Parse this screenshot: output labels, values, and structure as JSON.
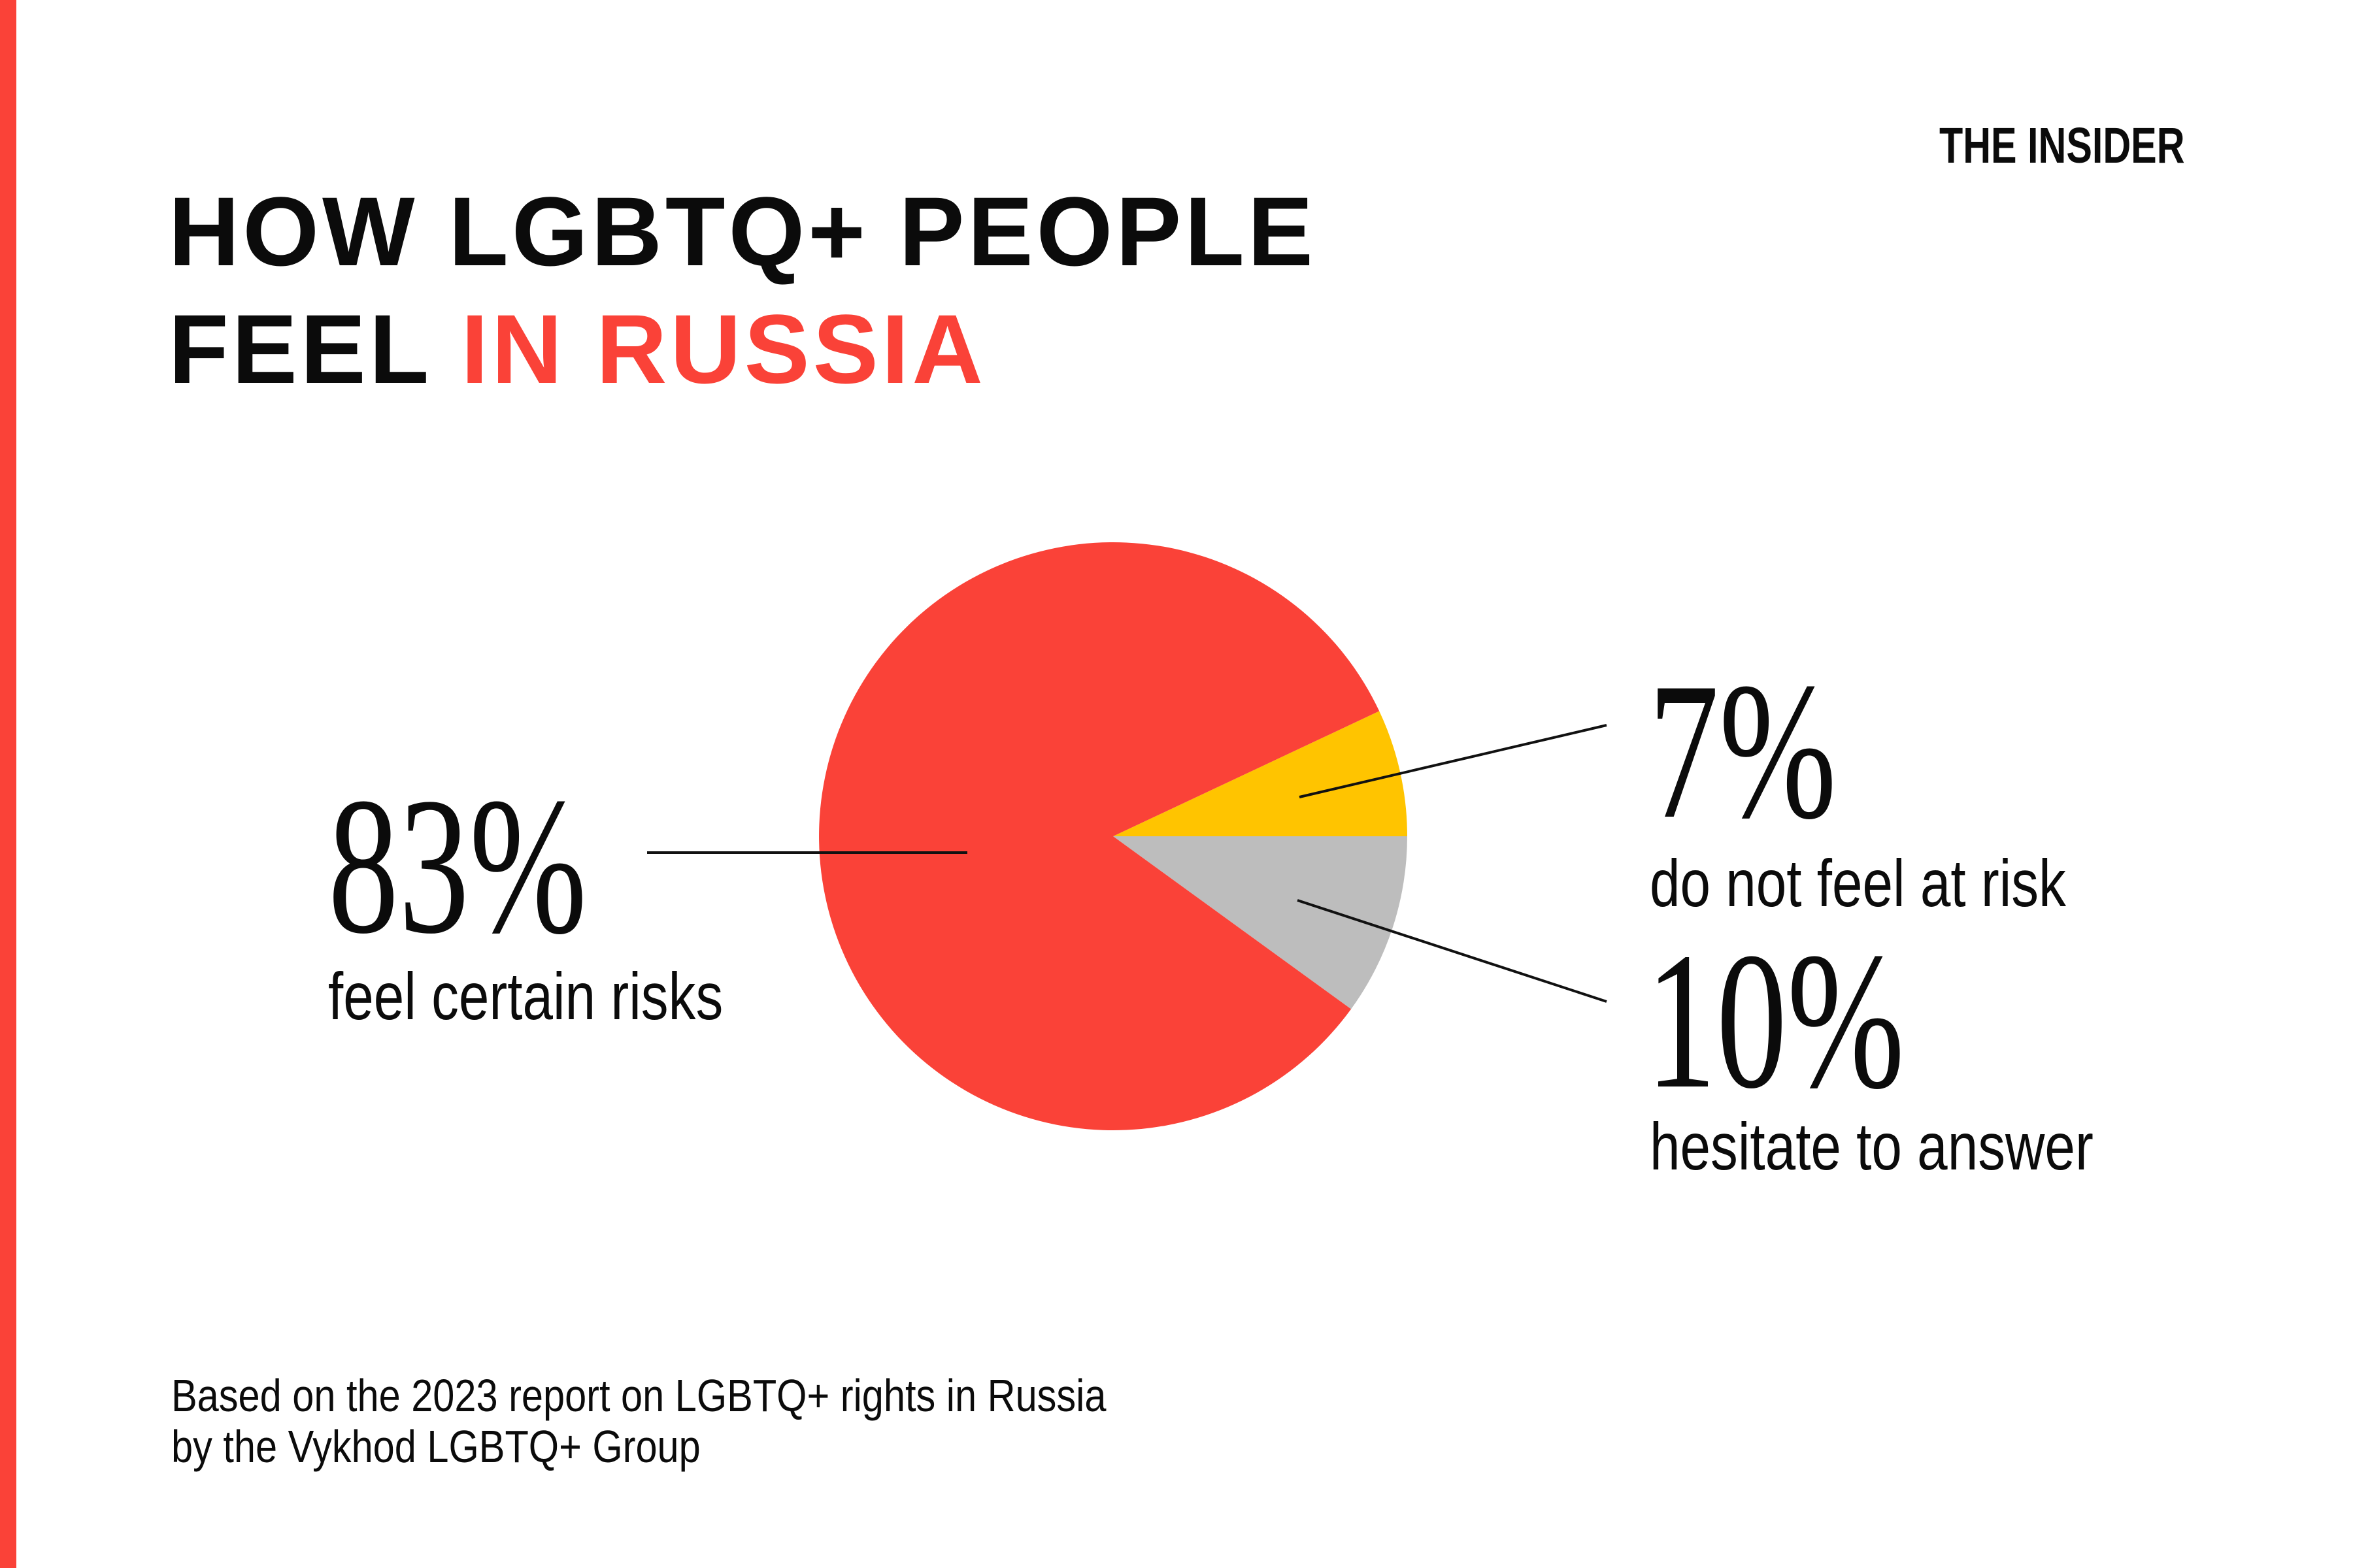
{
  "page": {
    "background": "#ffffff",
    "accent_red": "#fa4238",
    "accent_yellow": "#ffc400",
    "accent_gray": "#bdbdbd",
    "text_black": "#0b0b0b"
  },
  "header": {
    "title_line1": "HOW LGBTQ+ PEOPLE",
    "title_line2_black": "FEEL",
    "title_line2_red": "IN RUSSIA",
    "logo_text": "THE INSIDER"
  },
  "chart_data": {
    "type": "pie",
    "title": "How LGBTQ+ people feel in Russia",
    "unit": "%",
    "slices": [
      {
        "label": "feel certain risks",
        "value": 83,
        "color": "#fa4238"
      },
      {
        "label": "do not feel at risk",
        "value": 7,
        "color": "#ffc400"
      },
      {
        "label": "hesitate to answer",
        "value": 10,
        "color": "#bdbdbd"
      }
    ],
    "start_angle_deg": -25.2,
    "direction": "clockwise",
    "legend_position": "callout-labels",
    "grid": false
  },
  "callouts": {
    "main": {
      "pct": "83%",
      "text": "feel certain risks"
    },
    "top": {
      "pct": "7%",
      "text": "do not feel at risk"
    },
    "bot": {
      "pct": "10%",
      "text": "hesitate to answer"
    }
  },
  "footer": {
    "line1": "Based on the 2023 report on LGBTQ+ rights in Russia",
    "line2": "by the Vykhod LGBTQ+ Group"
  }
}
